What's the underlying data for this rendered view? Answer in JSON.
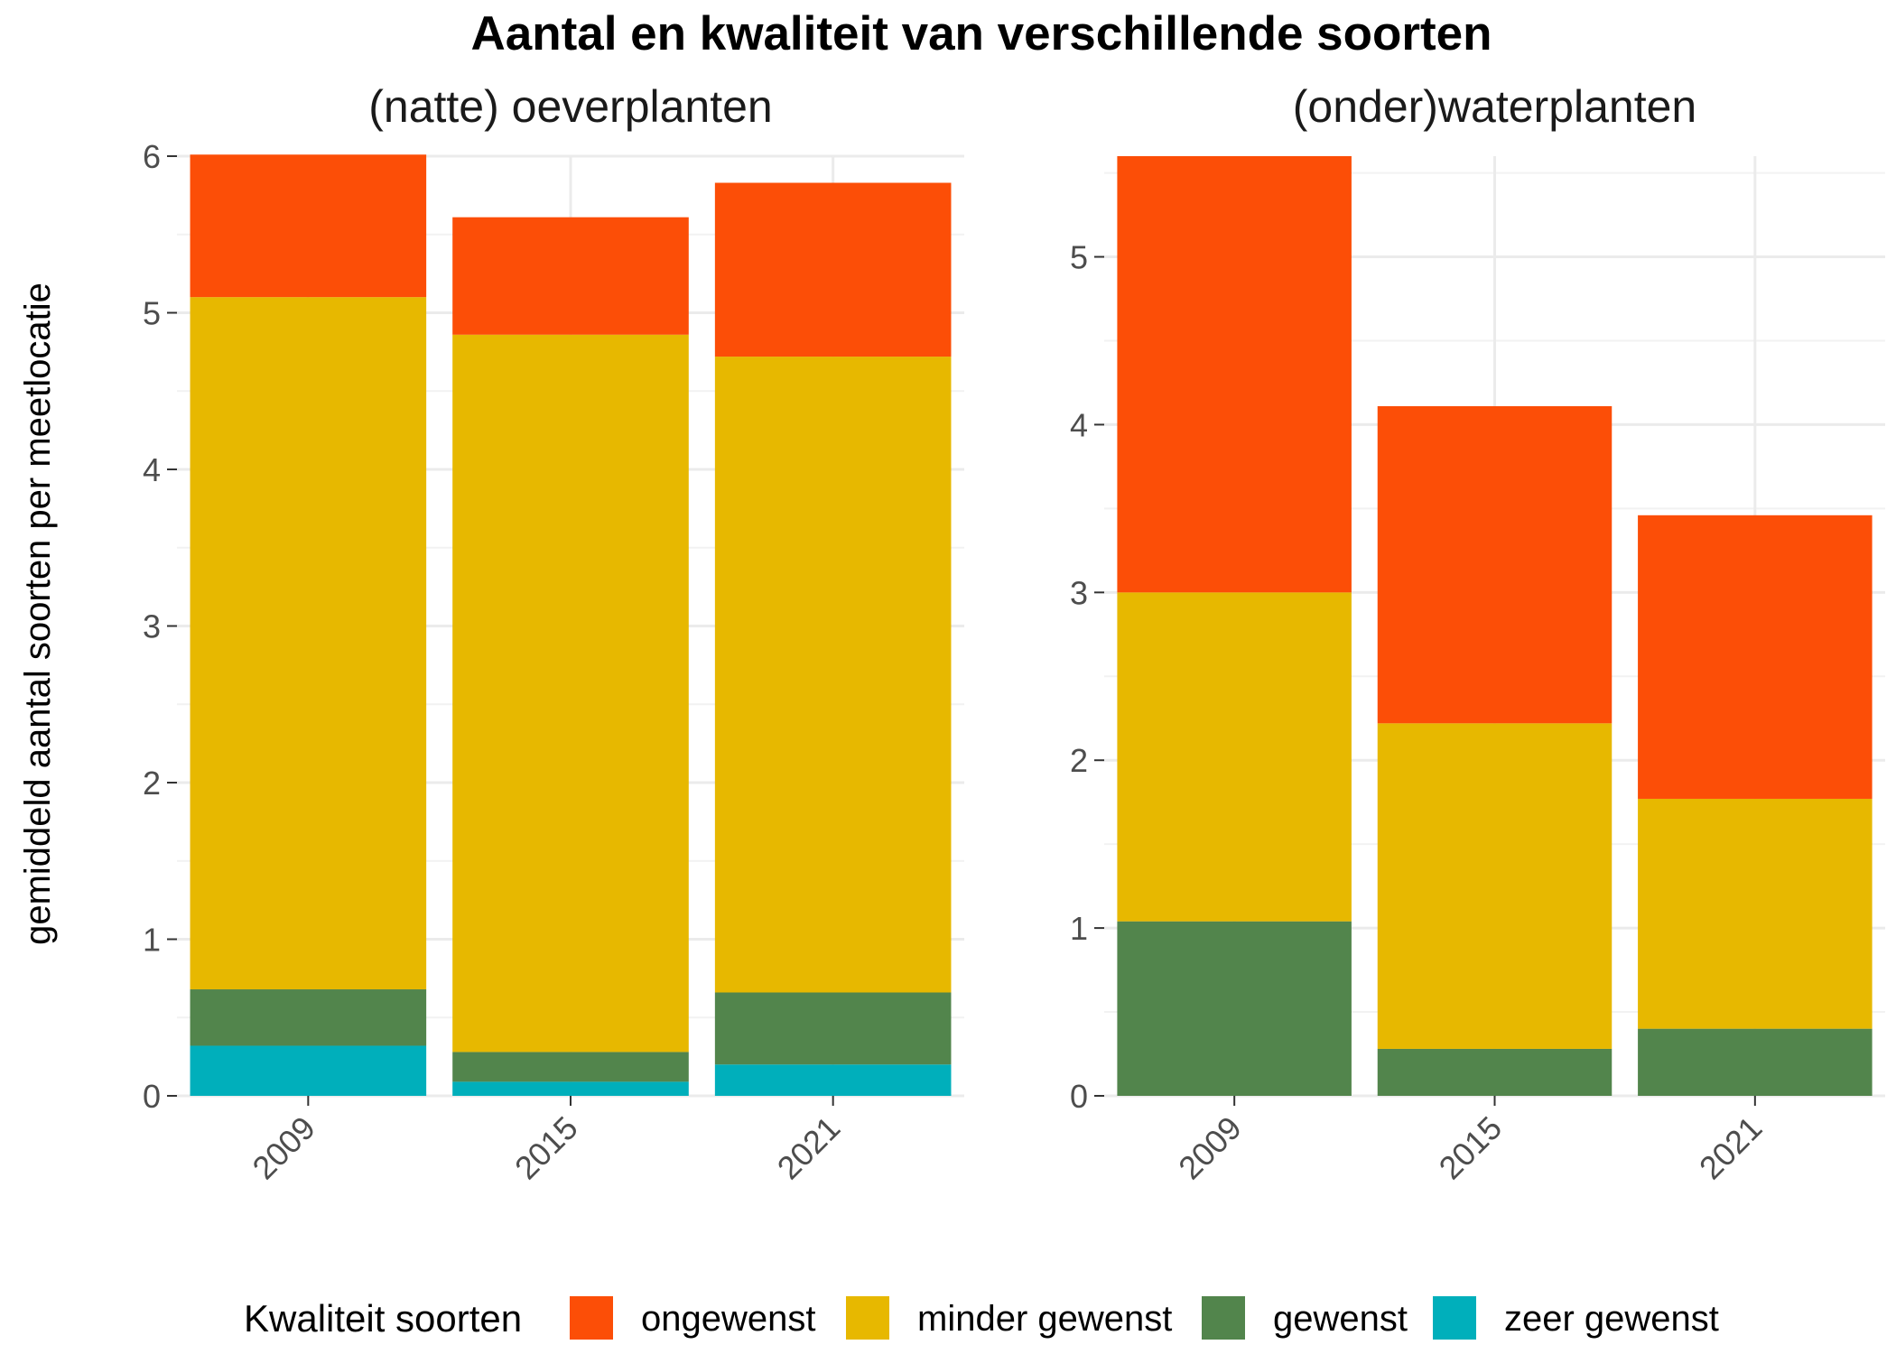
{
  "chart_data": {
    "type": "bar",
    "stacked": true,
    "title": "Aantal en kwaliteit van verschillende soorten",
    "ylabel": "gemiddeld aantal soorten per meetlocatie",
    "xlabel": "",
    "grid": true,
    "legend": {
      "title": "Kwaliteit soorten",
      "position": "bottom",
      "entries": [
        {
          "name": "ongewenst",
          "color": "#FC4E07"
        },
        {
          "name": "minder gewenst",
          "color": "#E7B800"
        },
        {
          "name": "gewenst",
          "color": "#52854C"
        },
        {
          "name": "zeer gewenst",
          "color": "#00AFBB"
        }
      ]
    },
    "facets": [
      {
        "title": "(natte) oeverplanten",
        "categories": [
          "2009",
          "2015",
          "2021"
        ],
        "ylim": [
          0,
          6
        ],
        "yticks": [
          0,
          1,
          2,
          3,
          4,
          5,
          6
        ],
        "series": [
          {
            "name": "zeer gewenst",
            "values": [
              0.32,
              0.09,
              0.2
            ]
          },
          {
            "name": "gewenst",
            "values": [
              0.36,
              0.19,
              0.46
            ]
          },
          {
            "name": "minder gewenst",
            "values": [
              4.42,
              4.58,
              4.06
            ]
          },
          {
            "name": "ongewenst",
            "values": [
              0.91,
              0.75,
              1.11
            ]
          }
        ]
      },
      {
        "title": "(onder)waterplanten",
        "categories": [
          "2009",
          "2015",
          "2021"
        ],
        "ylim": [
          0,
          5.6
        ],
        "yticks": [
          0,
          1,
          2,
          3,
          4,
          5
        ],
        "series": [
          {
            "name": "zeer gewenst",
            "values": [
              0,
              0,
              0
            ]
          },
          {
            "name": "gewenst",
            "values": [
              1.04,
              0.28,
              0.4
            ]
          },
          {
            "name": "minder gewenst",
            "values": [
              1.96,
              1.94,
              1.37
            ]
          },
          {
            "name": "ongewenst",
            "values": [
              2.6,
              1.89,
              1.69
            ]
          }
        ]
      }
    ]
  }
}
